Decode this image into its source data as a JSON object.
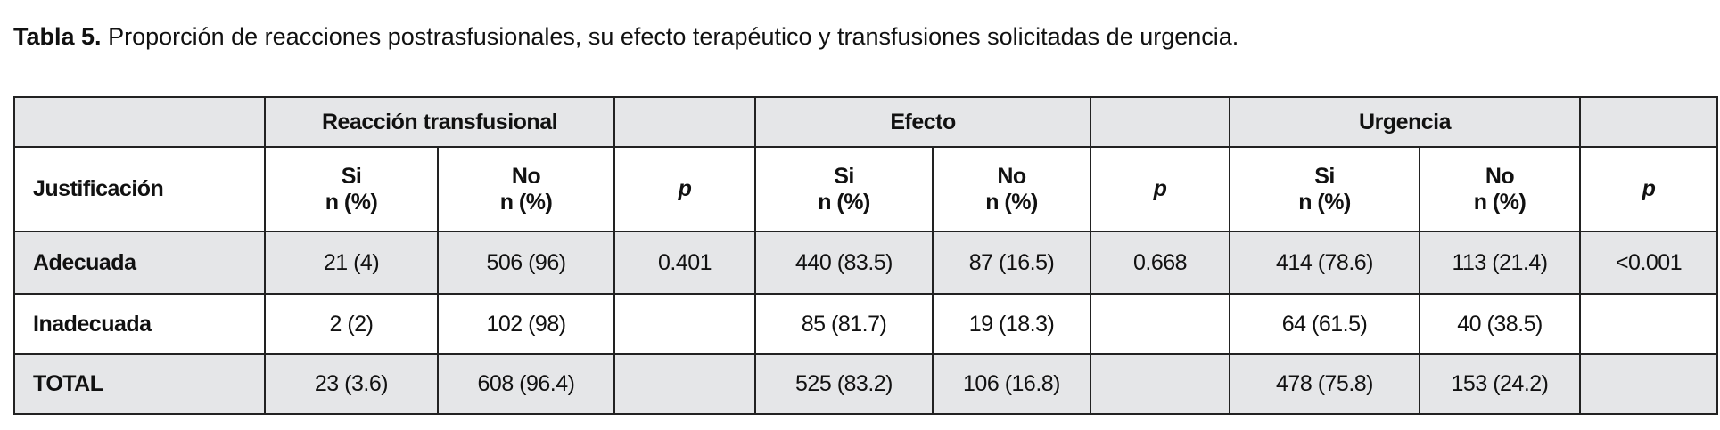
{
  "caption": {
    "label": "Tabla 5.",
    "text": "Proporción de reacciones postrasfusionales, su efecto terapéutico y transfusiones solicitadas de urgencia."
  },
  "table": {
    "groups": [
      "Reacción transfusional",
      "Efecto",
      "Urgencia"
    ],
    "row_header": "Justificación",
    "columns": [
      {
        "label": "Si",
        "unit": "n (%)"
      },
      {
        "label": "No",
        "unit": "n (%)"
      },
      {
        "label": "p"
      },
      {
        "label": "Si",
        "unit": "n (%)"
      },
      {
        "label": "No",
        "unit": "n (%)"
      },
      {
        "label": "p"
      },
      {
        "label": "Si",
        "unit": "n (%)"
      },
      {
        "label": "No",
        "unit": "n (%)"
      },
      {
        "label": "p"
      }
    ],
    "rows": [
      [
        "Adecuada",
        "21 (4)",
        "506 (96)",
        "0.401",
        "440 (83.5)",
        "87 (16.5)",
        "0.668",
        "414 (78.6)",
        "113 (21.4)",
        "<0.001"
      ],
      [
        "Inadecuada",
        "2 (2)",
        "102 (98)",
        null,
        "85 (81.7)",
        "19 (18.3)",
        null,
        "64 (61.5)",
        "40 (38.5)",
        null
      ],
      [
        "TOTAL",
        "23 (3.6)",
        "608 (96.4)",
        null,
        "525 (83.2)",
        "106 (16.8)",
        null,
        "478 (75.8)",
        "153 (24.2)",
        null
      ]
    ]
  }
}
